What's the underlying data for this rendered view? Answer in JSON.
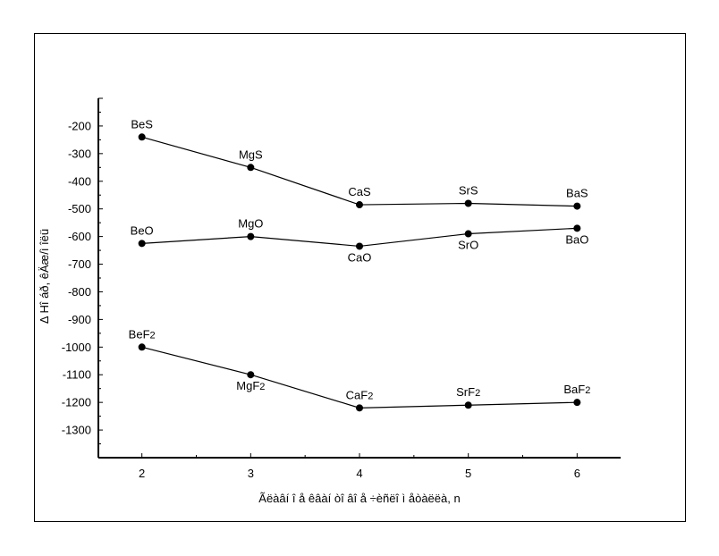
{
  "chart_data": {
    "type": "line",
    "xlabel": "Ãëàâí î å êâàí òî âî å ÷èñëî  ì åòàëëà, n",
    "ylabel": "Δ Hî áð, êÄæ/ì îëü",
    "x": [
      2,
      3,
      4,
      5,
      6
    ],
    "xlim": [
      1.6,
      6.4
    ],
    "ylim": [
      -1400,
      -100
    ],
    "x_ticks": [
      "2",
      "3",
      "4",
      "5",
      "6"
    ],
    "y_ticks": [
      "-200",
      "-300",
      "-400",
      "-500",
      "-600",
      "-700",
      "-800",
      "-900",
      "-1000",
      "-1100",
      "-1200",
      "-1300"
    ],
    "y_tick_values": [
      -200,
      -300,
      -400,
      -500,
      -600,
      -700,
      -800,
      -900,
      -1000,
      -1100,
      -1200,
      -1300
    ],
    "grid": false,
    "series": [
      {
        "values": [
          -240,
          -350,
          -485,
          -480,
          -490
        ],
        "point_labels": [
          {
            "text": "BeS",
            "sub": "",
            "pos": "above"
          },
          {
            "text": "MgS",
            "sub": "",
            "pos": "above"
          },
          {
            "text": "CaS",
            "sub": "",
            "pos": "above"
          },
          {
            "text": "SrS",
            "sub": "",
            "pos": "above"
          },
          {
            "text": "BaS",
            "sub": "",
            "pos": "above"
          }
        ]
      },
      {
        "values": [
          -625,
          -600,
          -635,
          -590,
          -570
        ],
        "point_labels": [
          {
            "text": "BeO",
            "sub": "",
            "pos": "above"
          },
          {
            "text": "MgO",
            "sub": "",
            "pos": "above"
          },
          {
            "text": "CaO",
            "sub": "",
            "pos": "below"
          },
          {
            "text": "SrO",
            "sub": "",
            "pos": "below"
          },
          {
            "text": "BaO",
            "sub": "",
            "pos": "below"
          }
        ]
      },
      {
        "values": [
          -1000,
          -1100,
          -1220,
          -1210,
          -1200
        ],
        "point_labels": [
          {
            "text": "BeF",
            "sub": "2",
            "pos": "above"
          },
          {
            "text": "MgF",
            "sub": "2",
            "pos": "below"
          },
          {
            "text": "CaF",
            "sub": "2",
            "pos": "above"
          },
          {
            "text": "SrF",
            "sub": "2",
            "pos": "above"
          },
          {
            "text": "BaF",
            "sub": "2",
            "pos": "above"
          }
        ]
      }
    ],
    "colors": {
      "line": "#000000",
      "marker": "#000000",
      "axis": "#000000"
    }
  }
}
